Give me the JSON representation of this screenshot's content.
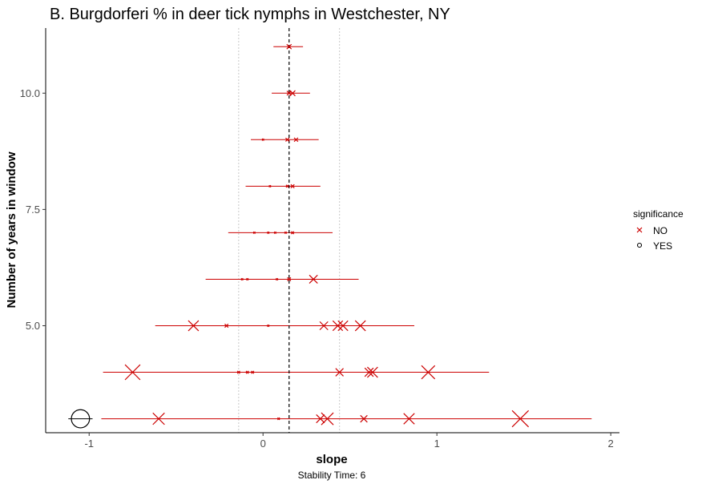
{
  "chart_data": {
    "type": "scatter",
    "title": "B. Burgdorferi % in deer tick nymphs in Westchester, NY",
    "xlabel": "slope",
    "ylabel": "Number of years in window",
    "caption": "Stability Time: 6",
    "xlim": [
      -1.25,
      2.05
    ],
    "ylim": [
      2.7,
      11.4
    ],
    "xticks": [
      -1,
      0,
      1,
      2
    ],
    "xtick_labels": [
      "-1",
      "0",
      "1",
      "2"
    ],
    "yticks": [
      5.0,
      7.5,
      10.0
    ],
    "ytick_labels": [
      "5.0",
      "7.5",
      "10.0"
    ],
    "grid": false,
    "reference_lines": {
      "mean_slope": 0.15,
      "minus_sd": -0.14,
      "plus_sd": 0.44
    },
    "colors": {
      "no": "#cc0000",
      "yes": "#000000",
      "mean_line": "#000000",
      "sd_lines": "#c8c8c8",
      "axis": "#000000"
    },
    "legend": {
      "title": "significance",
      "position": "right",
      "entries": [
        {
          "label": "NO",
          "shape": "x",
          "color": "#cc0000"
        },
        {
          "label": "YES",
          "shape": "circle",
          "color": "#000000"
        }
      ]
    },
    "ranges": [
      {
        "y": 11,
        "min": 0.06,
        "max": 0.23
      },
      {
        "y": 10,
        "min": 0.05,
        "max": 0.27
      },
      {
        "y": 9,
        "min": -0.07,
        "max": 0.32
      },
      {
        "y": 8,
        "min": -0.1,
        "max": 0.33
      },
      {
        "y": 7,
        "min": -0.2,
        "max": 0.4
      },
      {
        "y": 6,
        "min": -0.33,
        "max": 0.55
      },
      {
        "y": 5,
        "min": -0.62,
        "max": 0.87
      },
      {
        "y": 4,
        "min": -0.92,
        "max": 1.3
      },
      {
        "y": 3,
        "min": -0.93,
        "max": 1.89
      }
    ],
    "points": [
      {
        "x": 0.15,
        "y": 11,
        "size": 2.2,
        "sig": "NO"
      },
      {
        "x": 0.15,
        "y": 10,
        "size": 2.0,
        "sig": "NO"
      },
      {
        "x": 0.17,
        "y": 10,
        "size": 2.5,
        "sig": "NO"
      },
      {
        "x": 0.0,
        "y": 9,
        "size": 0.6,
        "sig": "NO"
      },
      {
        "x": 0.14,
        "y": 9,
        "size": 1.6,
        "sig": "NO"
      },
      {
        "x": 0.19,
        "y": 9,
        "size": 1.8,
        "sig": "NO"
      },
      {
        "x": 0.04,
        "y": 8,
        "size": 0.8,
        "sig": "NO"
      },
      {
        "x": 0.14,
        "y": 8,
        "size": 1.2,
        "sig": "NO"
      },
      {
        "x": 0.17,
        "y": 8,
        "size": 1.6,
        "sig": "NO"
      },
      {
        "x": -0.05,
        "y": 7,
        "size": 0.5,
        "sig": "NO"
      },
      {
        "x": 0.03,
        "y": 7,
        "size": 0.6,
        "sig": "NO"
      },
      {
        "x": 0.07,
        "y": 7,
        "size": 0.8,
        "sig": "NO"
      },
      {
        "x": 0.13,
        "y": 7,
        "size": 0.8,
        "sig": "NO"
      },
      {
        "x": 0.17,
        "y": 7,
        "size": 1.2,
        "sig": "NO"
      },
      {
        "x": -0.12,
        "y": 6,
        "size": 0.8,
        "sig": "NO"
      },
      {
        "x": -0.09,
        "y": 6,
        "size": 0.8,
        "sig": "NO"
      },
      {
        "x": 0.08,
        "y": 6,
        "size": 0.6,
        "sig": "NO"
      },
      {
        "x": 0.15,
        "y": 6,
        "size": 1.6,
        "sig": "NO"
      },
      {
        "x": 0.29,
        "y": 6,
        "size": 3.8,
        "sig": "NO"
      },
      {
        "x": -0.4,
        "y": 5,
        "size": 4.8,
        "sig": "NO"
      },
      {
        "x": -0.21,
        "y": 5,
        "size": 1.6,
        "sig": "NO"
      },
      {
        "x": 0.03,
        "y": 5,
        "size": 0.6,
        "sig": "NO"
      },
      {
        "x": 0.35,
        "y": 5,
        "size": 3.8,
        "sig": "NO"
      },
      {
        "x": 0.43,
        "y": 5,
        "size": 4.6,
        "sig": "NO"
      },
      {
        "x": 0.46,
        "y": 5,
        "size": 4.6,
        "sig": "NO"
      },
      {
        "x": 0.56,
        "y": 5,
        "size": 4.8,
        "sig": "NO"
      },
      {
        "x": -0.75,
        "y": 4,
        "size": 7.0,
        "sig": "NO"
      },
      {
        "x": -0.14,
        "y": 4,
        "size": 1.2,
        "sig": "NO"
      },
      {
        "x": -0.09,
        "y": 4,
        "size": 1.2,
        "sig": "NO"
      },
      {
        "x": -0.06,
        "y": 4,
        "size": 1.2,
        "sig": "NO"
      },
      {
        "x": 0.44,
        "y": 4,
        "size": 3.6,
        "sig": "NO"
      },
      {
        "x": 0.61,
        "y": 4,
        "size": 4.0,
        "sig": "NO"
      },
      {
        "x": 0.63,
        "y": 4,
        "size": 4.8,
        "sig": "NO"
      },
      {
        "x": 0.95,
        "y": 4,
        "size": 6.2,
        "sig": "NO"
      },
      {
        "x": 0.09,
        "y": 3,
        "size": 1.0,
        "sig": "NO"
      },
      {
        "x": -0.6,
        "y": 3,
        "size": 5.4,
        "sig": "NO"
      },
      {
        "x": 0.33,
        "y": 3,
        "size": 3.8,
        "sig": "NO"
      },
      {
        "x": 0.37,
        "y": 3,
        "size": 5.6,
        "sig": "NO"
      },
      {
        "x": 0.58,
        "y": 3,
        "size": 3.2,
        "sig": "NO"
      },
      {
        "x": 0.84,
        "y": 3,
        "size": 5.0,
        "sig": "NO"
      },
      {
        "x": 1.48,
        "y": 3,
        "size": 7.6,
        "sig": "NO"
      },
      {
        "x": -1.05,
        "y": 3,
        "size": 8.0,
        "sig": "YES"
      }
    ]
  }
}
